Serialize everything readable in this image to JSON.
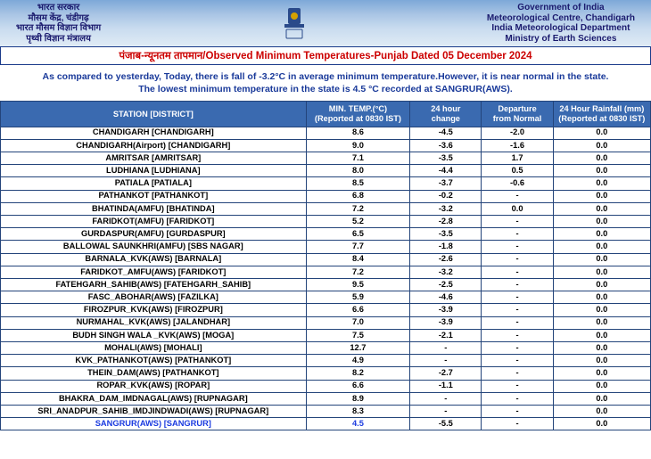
{
  "header": {
    "left_lines": [
      "भारत सरकार",
      "मौसम केंद्र, चंडीगढ़",
      "भारत मौसम विज्ञान विभाग",
      "पृथ्वी विज्ञान मंत्रालय"
    ],
    "right_lines": [
      "Government of India",
      "Meteorological Centre, Chandigarh",
      "India Meteorological Department",
      "Ministry of Earth Sciences"
    ]
  },
  "title": "पंजाब-न्यूनतम तापमान/Observed Minimum Temperatures-Punjab Dated 05 December 2024",
  "summary_line1": "As compared to yesterday, Today, there is fall of -3.2°C in average minimum temperature.However, it is near normal in the state.",
  "summary_line2": "The lowest minimum temperature in the state is 4.5 °C recorded at SANGRUR(AWS).",
  "columns": {
    "station": "STATION  [DISTRICT]",
    "min_l1": "MIN. TEMP.(°C)",
    "min_l2": "(Reported at 0830 IST)",
    "chg_l1": "24 hour",
    "chg_l2": "change",
    "dep_l1": "Departure",
    "dep_l2": "from Normal",
    "rain_l1": "24 Hour Rainfall (mm)",
    "rain_l2": "(Reported at 0830 IST)"
  },
  "rows": [
    {
      "station": "CHANDIGARH  [CHANDIGARH]",
      "min": "8.6",
      "chg": "-4.5",
      "dep": "-2.0",
      "rain": "0.0"
    },
    {
      "station": "CHANDIGARH(Airport)  [CHANDIGARH]",
      "min": "9.0",
      "chg": "-3.6",
      "dep": "-1.6",
      "rain": "0.0"
    },
    {
      "station": "AMRITSAR  [AMRITSAR]",
      "min": "7.1",
      "chg": "-3.5",
      "dep": "1.7",
      "rain": "0.0"
    },
    {
      "station": "LUDHIANA  [LUDHIANA]",
      "min": "8.0",
      "chg": "-4.4",
      "dep": "0.5",
      "rain": "0.0"
    },
    {
      "station": "PATIALA  [PATIALA]",
      "min": "8.5",
      "chg": "-3.7",
      "dep": "-0.6",
      "rain": "0.0"
    },
    {
      "station": "PATHANKOT  [PATHANKOT]",
      "min": "6.8",
      "chg": "-0.2",
      "dep": "-",
      "rain": "0.0"
    },
    {
      "station": "BHATINDA(AMFU)  [BHATINDA]",
      "min": "7.2",
      "chg": "-3.2",
      "dep": "0.0",
      "rain": "0.0"
    },
    {
      "station": "FARIDKOT(AMFU)  [FARIDKOT]",
      "min": "5.2",
      "chg": "-2.8",
      "dep": "-",
      "rain": "0.0"
    },
    {
      "station": "GURDASPUR(AMFU)  [GURDASPUR]",
      "min": "6.5",
      "chg": "-3.5",
      "dep": "-",
      "rain": "0.0"
    },
    {
      "station": "BALLOWAL SAUNKHRI(AMFU)  [SBS NAGAR]",
      "min": "7.7",
      "chg": "-1.8",
      "dep": "-",
      "rain": "0.0"
    },
    {
      "station": "BARNALA_KVK(AWS)  [BARNALA]",
      "min": "8.4",
      "chg": "-2.6",
      "dep": "-",
      "rain": "0.0"
    },
    {
      "station": "FARIDKOT_AMFU(AWS)  [FARIDKOT]",
      "min": "7.2",
      "chg": "-3.2",
      "dep": "-",
      "rain": "0.0"
    },
    {
      "station": "FATEHGARH_SAHIB(AWS)  [FATEHGARH_SAHIB]",
      "min": "9.5",
      "chg": "-2.5",
      "dep": "-",
      "rain": "0.0"
    },
    {
      "station": "FASC_ABOHAR(AWS)  [FAZILKA]",
      "min": "5.9",
      "chg": "-4.6",
      "dep": "-",
      "rain": "0.0"
    },
    {
      "station": "FIROZPUR_KVK(AWS)  [FIROZPUR]",
      "min": "6.6",
      "chg": "-3.9",
      "dep": "-",
      "rain": "0.0"
    },
    {
      "station": "NURMAHAL_KVK(AWS)  [JALANDHAR]",
      "min": "7.0",
      "chg": "-3.9",
      "dep": "-",
      "rain": "0.0"
    },
    {
      "station": "BUDH SINGH WALA _KVK(AWS)  [MOGA]",
      "min": "7.5",
      "chg": "-2.1",
      "dep": "-",
      "rain": "0.0"
    },
    {
      "station": "MOHALI(AWS)  [MOHALI]",
      "min": "12.7",
      "chg": "-",
      "dep": "-",
      "rain": "0.0"
    },
    {
      "station": "KVK_PATHANKOT(AWS)  [PATHANKOT]",
      "min": "4.9",
      "chg": "-",
      "dep": "-",
      "rain": "0.0"
    },
    {
      "station": "THEIN_DAM(AWS)  [PATHANKOT]",
      "min": "8.2",
      "chg": "-2.7",
      "dep": "-",
      "rain": "0.0"
    },
    {
      "station": "ROPAR_KVK(AWS)  [ROPAR]",
      "min": "6.6",
      "chg": "-1.1",
      "dep": "-",
      "rain": "0.0"
    },
    {
      "station": "BHAKRA_DAM_IMDNAGAL(AWS)  [RUPNAGAR]",
      "min": "8.9",
      "chg": "-",
      "dep": "-",
      "rain": "0.0"
    },
    {
      "station": "SRI_ANADPUR_SAHIB_IMDJINDWADI(AWS)  [RUPNAGAR]",
      "min": "8.3",
      "chg": "-",
      "dep": "-",
      "rain": "0.0"
    },
    {
      "station": "SANGRUR(AWS)  [SANGRUR]",
      "min": "4.5",
      "chg": "-5.5",
      "dep": "-",
      "rain": "0.0",
      "lowest": true
    }
  ],
  "colors": {
    "header_blue": "#3a6ab0",
    "border": "#23447a",
    "title_red": "#cc0000",
    "summary_blue": "#1a3a9a",
    "lowest_blue": "#1a3ae0",
    "band_top": "#7da8d8",
    "band_bottom": "#e0ebf5"
  }
}
